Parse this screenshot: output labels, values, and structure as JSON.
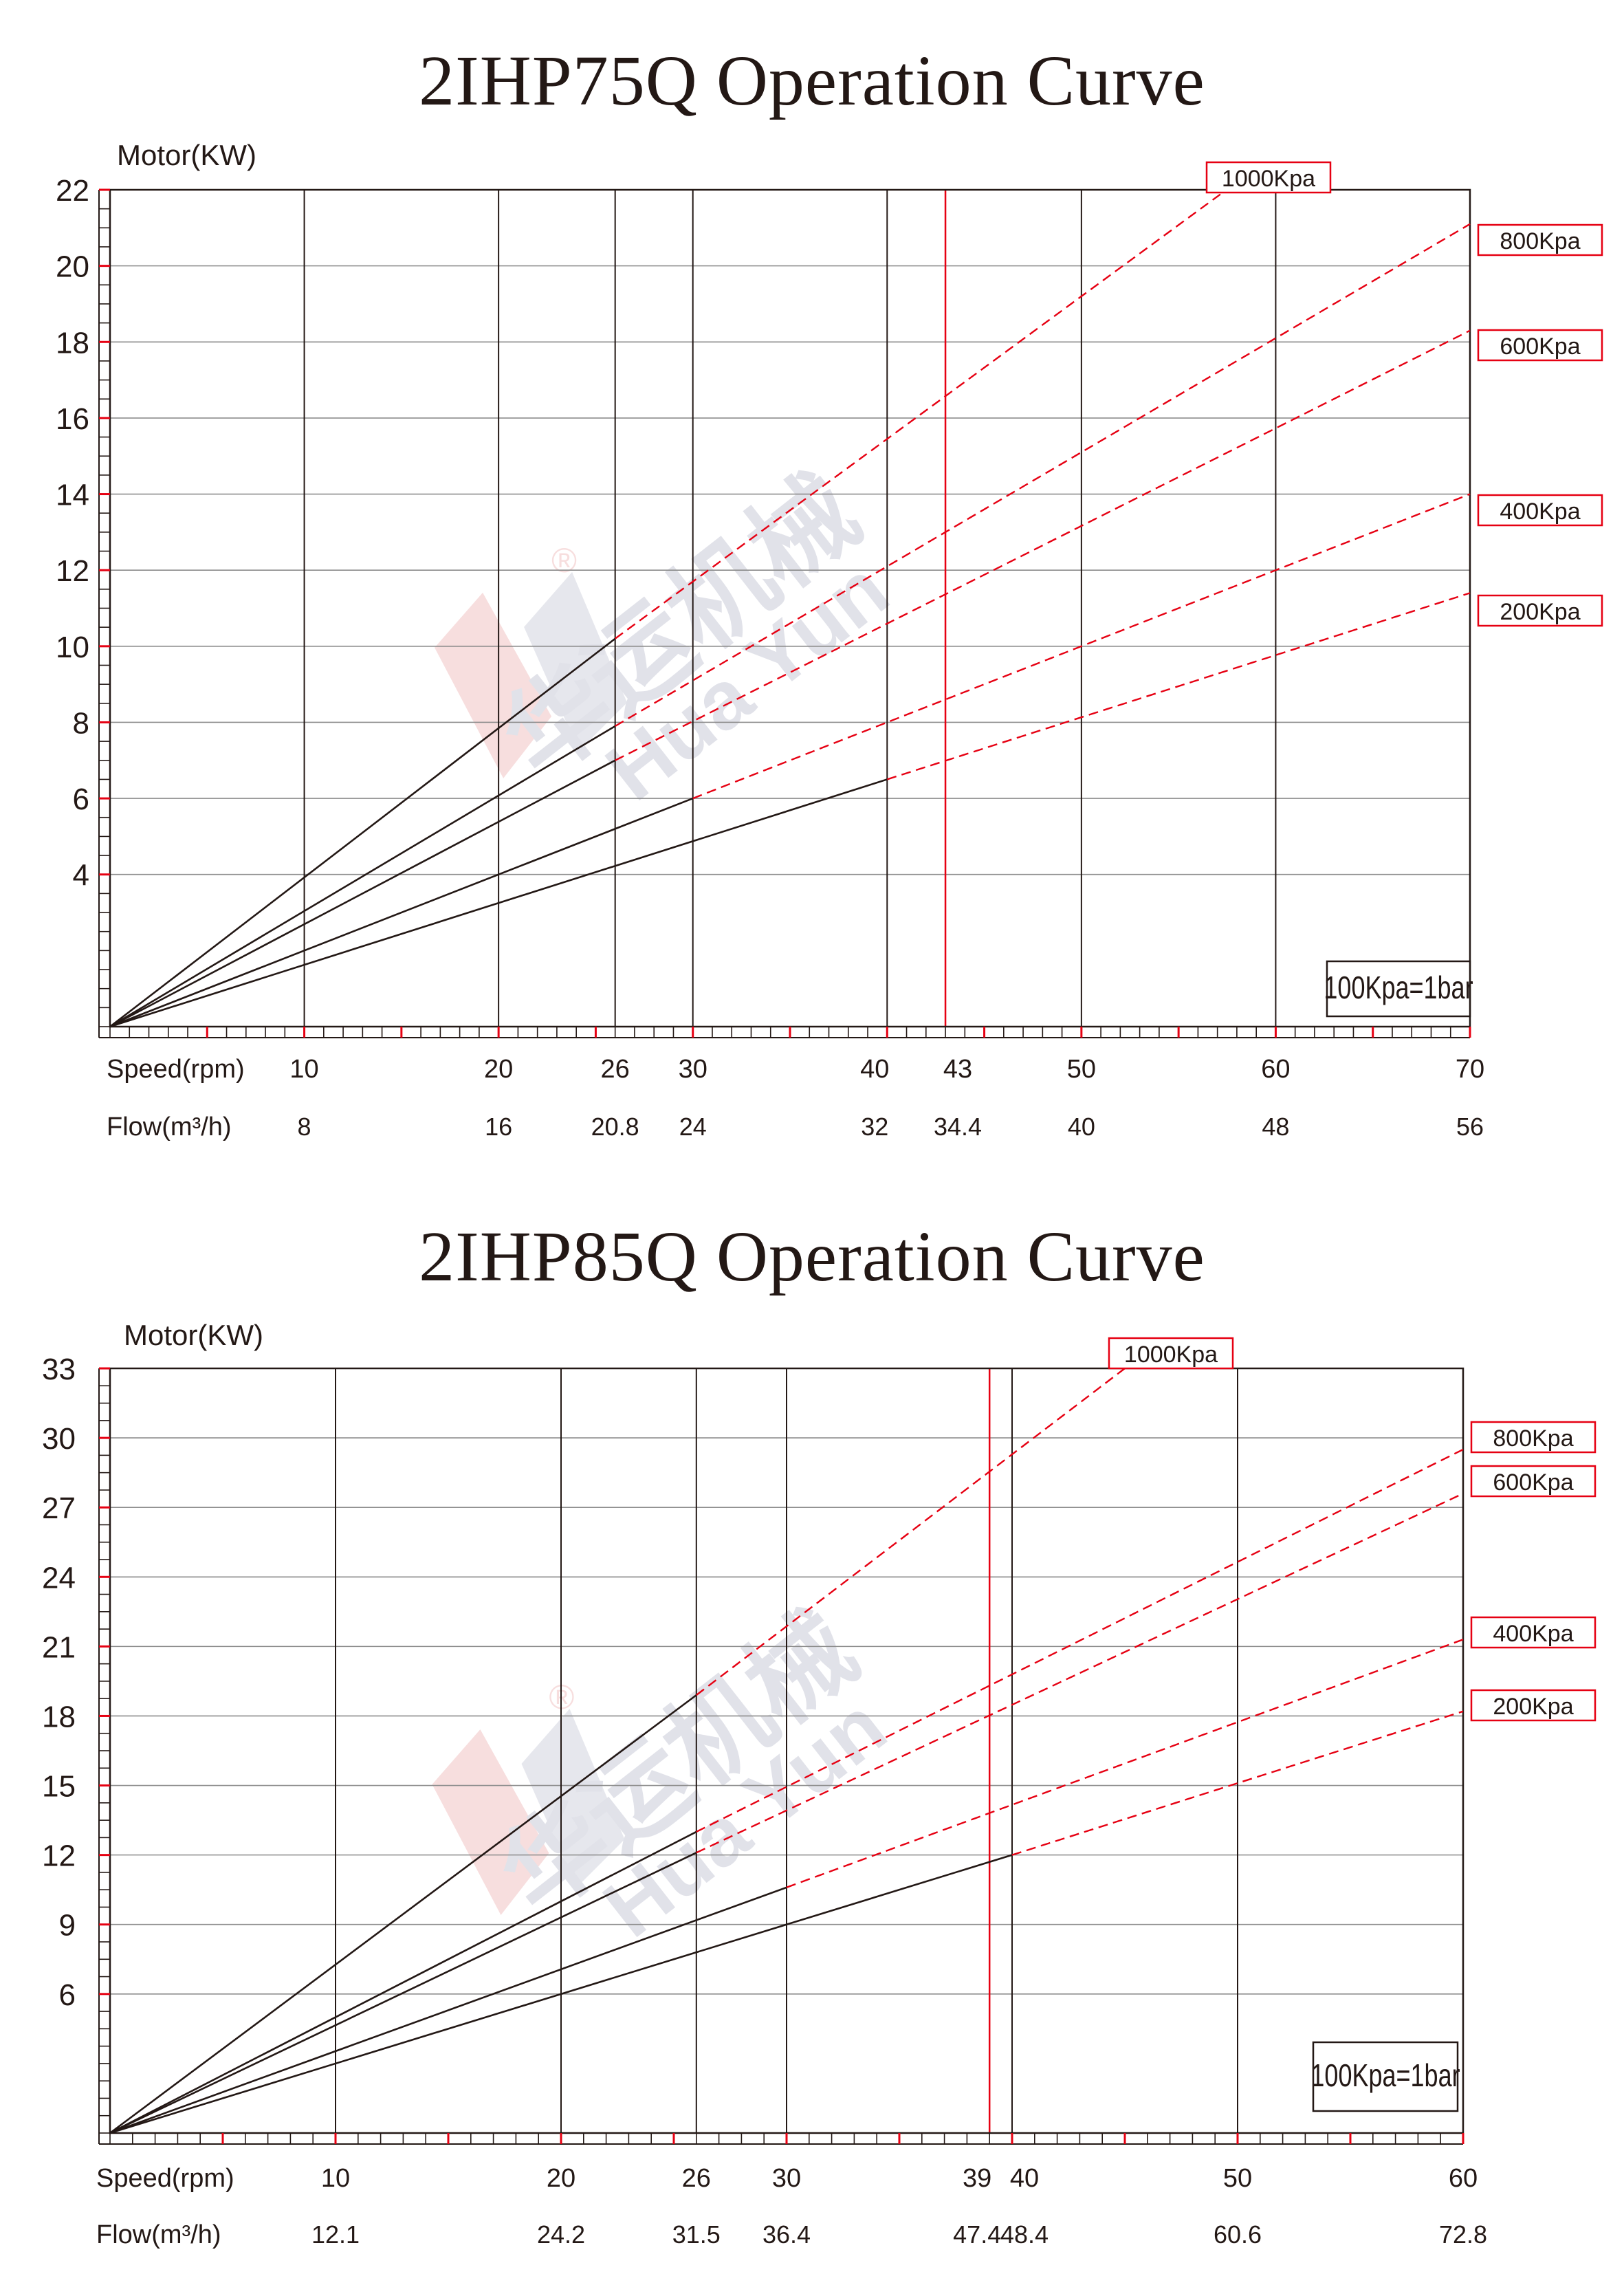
{
  "watermark": {
    "text": "华运机械",
    "latin": "Hua Yun",
    "mark": "®",
    "color": "#c9cbd8"
  },
  "colors": {
    "grid": "#231815",
    "accent": "#e60012",
    "curve": "#231815",
    "dash": "#e60012"
  },
  "chart_data": [
    {
      "type": "line",
      "title": "2IHP75Q Operation Curve",
      "ylabel": "Motor(KW)",
      "ylim": [
        0,
        22
      ],
      "yticks": [
        4,
        6,
        8,
        10,
        12,
        14,
        16,
        18,
        20,
        22
      ],
      "xlim": [
        0,
        70
      ],
      "x_row_label": "Speed(rpm)",
      "flow_row_label": "Flow(m³/h)",
      "speed_ticks": [
        "10",
        "20",
        "26",
        "30",
        "40",
        "43",
        "50",
        "60",
        "70"
      ],
      "speed_values": [
        10,
        20,
        26,
        30,
        40,
        43,
        50,
        60,
        70
      ],
      "flow_ticks": [
        "8",
        "16",
        "20.8",
        "24",
        "32",
        "34.4",
        "40",
        "48",
        "56"
      ],
      "grid_x": [
        10,
        20,
        26,
        30,
        40,
        50,
        60
      ],
      "grid_y": [
        4,
        6,
        8,
        10,
        12,
        14,
        16,
        18,
        20
      ],
      "red_line_x": 43,
      "red_ticks_every": 5,
      "note": "100Kpa=1bar",
      "series": [
        {
          "name": "1000Kpa",
          "solid_end": [
            26,
            10.2
          ],
          "dash_end": [
            58,
            22.2
          ]
        },
        {
          "name": "800Kpa",
          "solid_end": [
            26,
            7.9
          ],
          "dash_end": [
            70,
            21.1
          ]
        },
        {
          "name": "600Kpa",
          "solid_end": [
            26,
            7.0
          ],
          "dash_end": [
            70,
            18.3
          ]
        },
        {
          "name": "400Kpa",
          "solid_end": [
            30,
            6.0
          ],
          "dash_end": [
            70,
            14.0
          ]
        },
        {
          "name": "200Kpa",
          "solid_end": [
            40,
            6.5
          ],
          "dash_end": [
            70,
            11.4
          ]
        }
      ]
    },
    {
      "type": "line",
      "title": "2IHP85Q Operation Curve",
      "ylabel": "Motor(KW)",
      "ylim": [
        0,
        33
      ],
      "yticks": [
        6,
        9,
        12,
        15,
        18,
        21,
        24,
        27,
        30,
        33
      ],
      "xlim": [
        0,
        60
      ],
      "x_row_label": "Speed(rpm)",
      "flow_row_label": "Flow(m³/h)",
      "speed_ticks": [
        "10",
        "20",
        "26",
        "30",
        "39",
        "40",
        "50",
        "60"
      ],
      "speed_values": [
        10,
        20,
        26,
        30,
        39,
        40,
        50,
        60
      ],
      "flow_ticks": [
        "12.1",
        "24.2",
        "31.5",
        "36.4",
        "47.4",
        "48.4",
        "60.6",
        "72.8"
      ],
      "grid_x": [
        10,
        20,
        26,
        30,
        40,
        50
      ],
      "grid_y": [
        6,
        9,
        12,
        15,
        18,
        21,
        24,
        27,
        30
      ],
      "red_line_x": 39,
      "red_ticks_every": 5,
      "note": "100Kpa=1bar",
      "series": [
        {
          "name": "1000Kpa",
          "solid_end": [
            26,
            18.9
          ],
          "dash_end": [
            45,
            33.0
          ]
        },
        {
          "name": "800Kpa",
          "solid_end": [
            26,
            13.0
          ],
          "dash_end": [
            60,
            29.5
          ]
        },
        {
          "name": "600Kpa",
          "solid_end": [
            26,
            12.1
          ],
          "dash_end": [
            60,
            27.6
          ]
        },
        {
          "name": "400Kpa",
          "solid_end": [
            30,
            10.6
          ],
          "dash_end": [
            60,
            21.3
          ]
        },
        {
          "name": "200Kpa",
          "solid_end": [
            40,
            12.0
          ],
          "dash_end": [
            60,
            18.2
          ]
        }
      ]
    }
  ]
}
